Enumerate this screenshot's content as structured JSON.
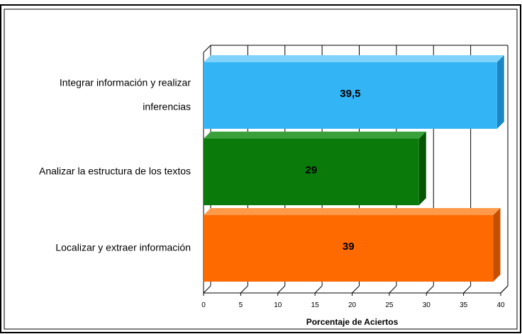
{
  "chart_data": {
    "type": "bar",
    "orientation": "horizontal",
    "three_d": true,
    "categories": [
      [
        "Integrar información y realizar",
        "inferencias"
      ],
      [
        "Analizar la estructura de los textos"
      ],
      [
        "Localizar y extraer información"
      ]
    ],
    "values": [
      39.5,
      29,
      39
    ],
    "value_labels": [
      "39,5",
      "29",
      "39"
    ],
    "colors": [
      "#33b4f5",
      "#0a7b0a",
      "#ff6a00"
    ],
    "side_colors": [
      "#1a86c4",
      "#055505",
      "#c44f00"
    ],
    "top_colors": [
      "#7fd3fb",
      "#3aa03a",
      "#ff9a4a"
    ],
    "xlim": [
      0,
      40
    ],
    "xticks": [
      "0",
      "5",
      "10",
      "15",
      "20",
      "25",
      "30",
      "35",
      "40"
    ],
    "xlabel": "Porcentaje de Aciertos",
    "ylabel": "",
    "title": "",
    "grid": "vertical",
    "legend": "none"
  }
}
